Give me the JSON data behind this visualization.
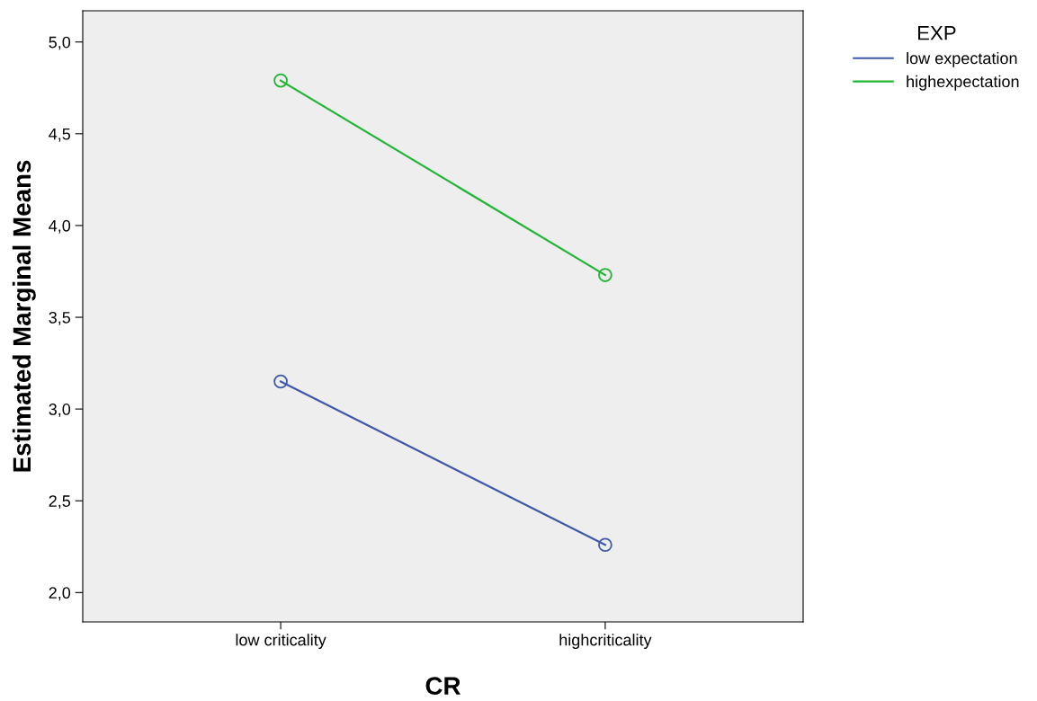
{
  "chart_data": {
    "type": "line",
    "xlabel": "CR",
    "ylabel": "Estimated Marginal Means",
    "legend_title": "EXP",
    "categories": [
      "low criticality",
      "highcriticality"
    ],
    "series": [
      {
        "name": "low expectation",
        "color": "#3e58ac",
        "values": [
          3.15,
          2.26
        ]
      },
      {
        "name": "highexpectation",
        "color": "#21b534",
        "values": [
          4.79,
          3.73
        ]
      }
    ],
    "ylim": [
      1.84,
      5.17
    ],
    "yticks": [
      {
        "value": 2.0,
        "label": "2,0"
      },
      {
        "value": 2.5,
        "label": "2,5"
      },
      {
        "value": 3.0,
        "label": "3,0"
      },
      {
        "value": 3.5,
        "label": "3,5"
      },
      {
        "value": 4.0,
        "label": "4,0"
      },
      {
        "value": 4.5,
        "label": "4,5"
      },
      {
        "value": 5.0,
        "label": "5,0"
      }
    ],
    "grid": false,
    "legend": "top right",
    "marker": "circle",
    "line_style": "solid"
  }
}
